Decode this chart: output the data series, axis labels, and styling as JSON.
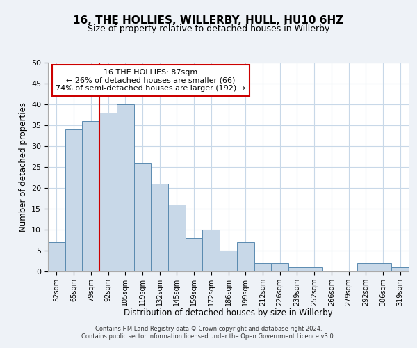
{
  "title": "16, THE HOLLIES, WILLERBY, HULL, HU10 6HZ",
  "subtitle": "Size of property relative to detached houses in Willerby",
  "xlabel": "Distribution of detached houses by size in Willerby",
  "ylabel": "Number of detached properties",
  "categories": [
    "52sqm",
    "65sqm",
    "79sqm",
    "92sqm",
    "105sqm",
    "119sqm",
    "132sqm",
    "145sqm",
    "159sqm",
    "172sqm",
    "186sqm",
    "199sqm",
    "212sqm",
    "226sqm",
    "239sqm",
    "252sqm",
    "266sqm",
    "279sqm",
    "292sqm",
    "306sqm",
    "319sqm"
  ],
  "values": [
    7,
    34,
    36,
    38,
    40,
    26,
    21,
    16,
    8,
    10,
    5,
    7,
    2,
    2,
    1,
    1,
    0,
    0,
    2,
    2,
    1
  ],
  "bar_color": "#c8d8e8",
  "bar_edge_color": "#5a8ab0",
  "ylim": [
    0,
    50
  ],
  "yticks": [
    0,
    5,
    10,
    15,
    20,
    25,
    30,
    35,
    40,
    45,
    50
  ],
  "property_line_index": 3,
  "property_line_color": "#cc0000",
  "annotation_line1": "16 THE HOLLIES: 87sqm",
  "annotation_line2": "← 26% of detached houses are smaller (66)",
  "annotation_line3": "74% of semi-detached houses are larger (192) →",
  "annotation_box_color": "#ffffff",
  "annotation_border_color": "#cc0000",
  "footer_line1": "Contains HM Land Registry data © Crown copyright and database right 2024.",
  "footer_line2": "Contains public sector information licensed under the Open Government Licence v3.0.",
  "background_color": "#eef2f7",
  "plot_background_color": "#ffffff",
  "grid_color": "#c8d8e8",
  "title_fontsize": 11,
  "subtitle_fontsize": 9
}
